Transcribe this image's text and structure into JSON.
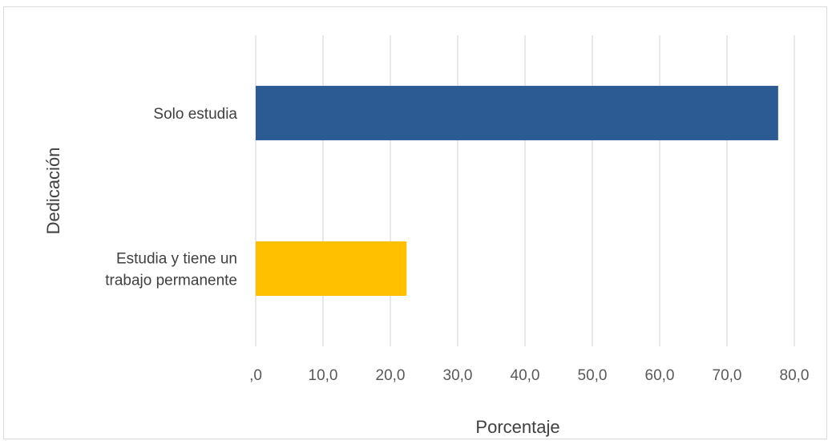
{
  "chart_data": {
    "type": "bar",
    "orientation": "horizontal",
    "categories": [
      [
        "Solo estudia"
      ],
      [
        "Estudia y tiene un",
        "trabajo permanente"
      ]
    ],
    "values": [
      77.6,
      22.4
    ],
    "colors": [
      "#2c5b94",
      "#ffc000"
    ],
    "xlabel": "Porcentaje",
    "ylabel": "Dedicación",
    "xlim": [
      0,
      80
    ],
    "xticks": [
      ",0",
      "10,0",
      "20,0",
      "30,0",
      "40,0",
      "50,0",
      "60,0",
      "70,0",
      "80,0"
    ],
    "grid": true,
    "legend": "none"
  }
}
